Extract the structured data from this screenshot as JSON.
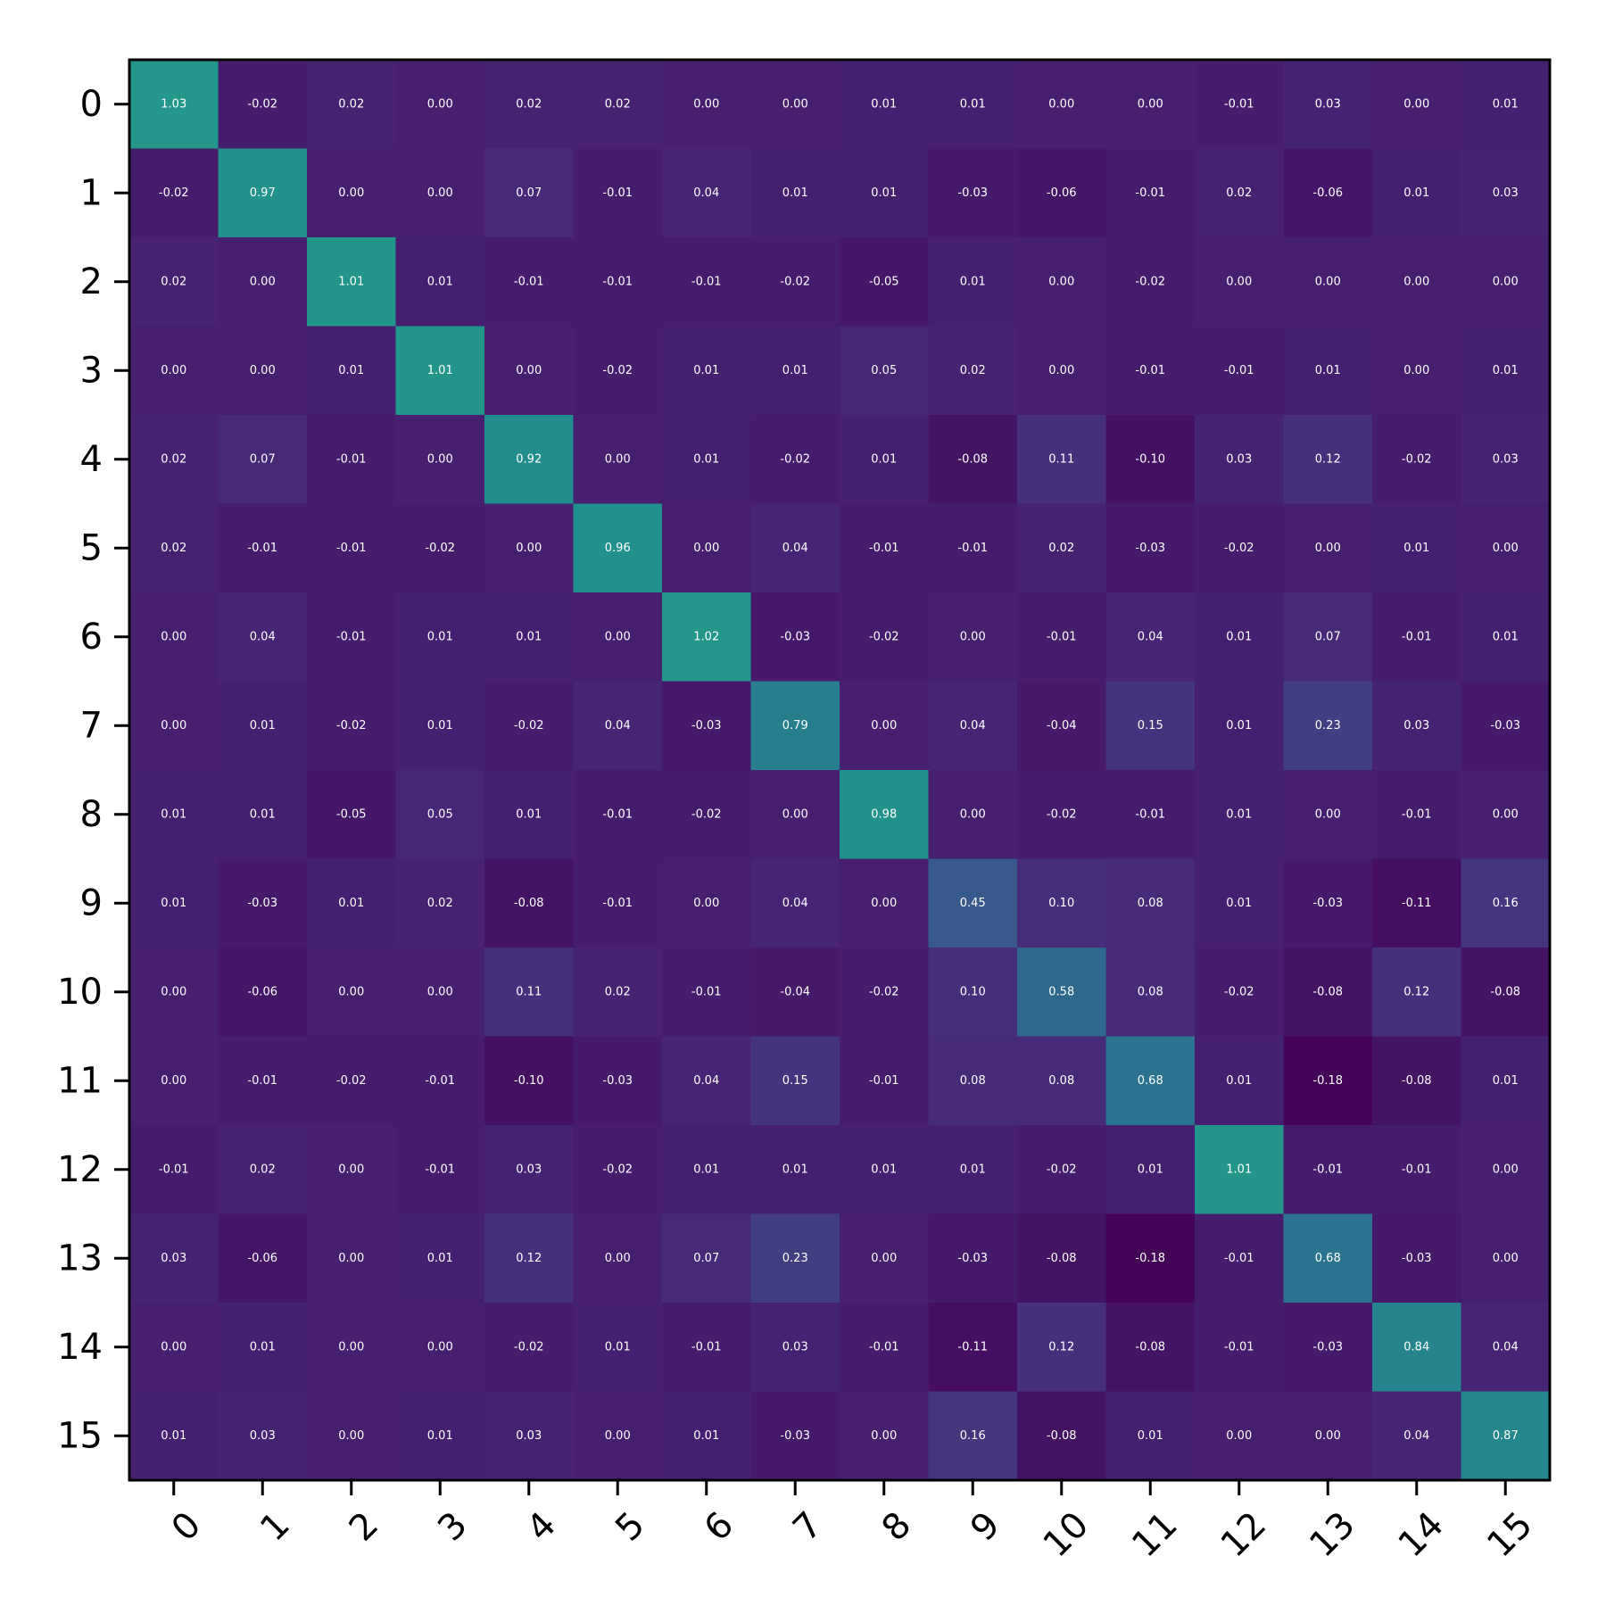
{
  "chart_data": {
    "type": "heatmap",
    "title": "",
    "xlabel": "",
    "ylabel": "",
    "x_ticks": [
      "0",
      "1",
      "2",
      "3",
      "4",
      "5",
      "6",
      "7",
      "8",
      "9",
      "10",
      "11",
      "12",
      "13",
      "14",
      "15"
    ],
    "y_ticks": [
      "0",
      "1",
      "2",
      "3",
      "4",
      "5",
      "6",
      "7",
      "8",
      "9",
      "10",
      "11",
      "12",
      "13",
      "14",
      "15"
    ],
    "colormap": "viridis",
    "color_range": [
      -0.2,
      2.1
    ],
    "grid": false,
    "values": [
      [
        1.03,
        -0.02,
        0.02,
        0.0,
        0.02,
        0.02,
        -0.0,
        0.0,
        0.01,
        0.01,
        -0.0,
        -0.0,
        -0.01,
        0.03,
        -0.0,
        0.01
      ],
      [
        -0.02,
        0.97,
        0.0,
        0.0,
        0.07,
        -0.01,
        0.04,
        0.01,
        0.01,
        -0.03,
        -0.06,
        -0.01,
        0.02,
        -0.06,
        0.01,
        0.03
      ],
      [
        0.02,
        0.0,
        1.01,
        0.01,
        -0.01,
        -0.01,
        -0.01,
        -0.02,
        -0.05,
        0.01,
        0.0,
        -0.02,
        -0.0,
        0.0,
        -0.0,
        -0.0
      ],
      [
        0.0,
        0.0,
        0.01,
        1.01,
        -0.0,
        -0.02,
        0.01,
        0.01,
        0.05,
        0.02,
        -0.0,
        -0.01,
        -0.01,
        0.01,
        -0.0,
        0.01
      ],
      [
        0.02,
        0.07,
        -0.01,
        -0.0,
        0.92,
        -0.0,
        0.01,
        -0.02,
        0.01,
        -0.08,
        0.11,
        -0.1,
        0.03,
        0.12,
        -0.02,
        0.03
      ],
      [
        0.02,
        -0.01,
        -0.01,
        -0.02,
        -0.0,
        0.96,
        0.0,
        0.04,
        -0.01,
        -0.01,
        0.02,
        -0.03,
        -0.02,
        -0.0,
        0.01,
        0.0
      ],
      [
        -0.0,
        0.04,
        -0.01,
        0.01,
        0.01,
        0.0,
        1.02,
        -0.03,
        -0.02,
        0.0,
        -0.01,
        0.04,
        0.01,
        0.07,
        -0.01,
        0.01
      ],
      [
        0.0,
        0.01,
        -0.02,
        0.01,
        -0.02,
        0.04,
        -0.03,
        0.79,
        0.0,
        0.04,
        -0.04,
        0.15,
        0.01,
        0.23,
        0.03,
        -0.03
      ],
      [
        0.01,
        0.01,
        -0.05,
        0.05,
        0.01,
        -0.01,
        -0.02,
        0.0,
        0.98,
        0.0,
        -0.02,
        -0.01,
        0.01,
        0.0,
        -0.01,
        -0.0
      ],
      [
        0.01,
        -0.03,
        0.01,
        0.02,
        -0.08,
        -0.01,
        0.0,
        0.04,
        0.0,
        0.45,
        0.1,
        0.08,
        0.01,
        -0.03,
        -0.11,
        0.16
      ],
      [
        -0.0,
        -0.06,
        0.0,
        -0.0,
        0.11,
        0.02,
        -0.01,
        -0.04,
        -0.02,
        0.1,
        0.58,
        0.08,
        -0.02,
        -0.08,
        0.12,
        -0.08
      ],
      [
        -0.0,
        -0.01,
        -0.02,
        -0.01,
        -0.1,
        -0.03,
        0.04,
        0.15,
        -0.01,
        0.08,
        0.08,
        0.68,
        0.01,
        -0.18,
        -0.08,
        0.01
      ],
      [
        -0.01,
        0.02,
        -0.0,
        -0.01,
        0.03,
        -0.02,
        0.01,
        0.01,
        0.01,
        0.01,
        -0.02,
        0.01,
        1.01,
        -0.01,
        -0.01,
        0.0
      ],
      [
        0.03,
        -0.06,
        0.0,
        0.01,
        0.12,
        -0.0,
        0.07,
        0.23,
        0.0,
        -0.03,
        -0.08,
        -0.18,
        -0.01,
        0.68,
        -0.03,
        0.0
      ],
      [
        -0.0,
        0.01,
        -0.0,
        -0.0,
        -0.02,
        0.01,
        -0.01,
        0.03,
        -0.01,
        -0.11,
        0.12,
        -0.08,
        -0.01,
        -0.03,
        0.84,
        0.04
      ],
      [
        0.01,
        0.03,
        -0.0,
        0.01,
        0.03,
        0.0,
        0.01,
        -0.03,
        -0.0,
        0.16,
        -0.08,
        0.01,
        0.0,
        0.0,
        0.04,
        0.87
      ]
    ]
  }
}
